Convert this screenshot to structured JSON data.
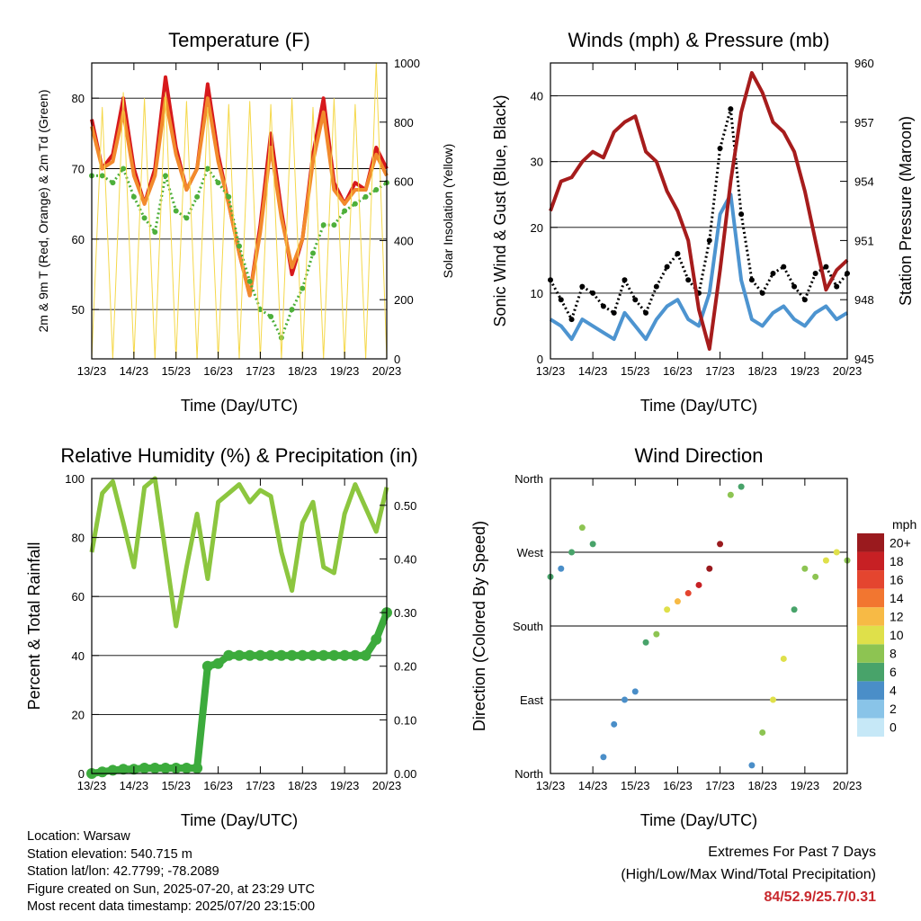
{
  "chart_data": [
    {
      "type": "line",
      "title": "Temperature (F)",
      "xlabel": "Time (Day/UTC)",
      "ylabel": "2m & 9m T (Red, Orange) & 2m Td (Green)",
      "ylabel_right": "Solar Insolation (Yellow)",
      "ylim": [
        43,
        85
      ],
      "ylim_right": [
        0,
        1000
      ],
      "x_ticks": [
        "13/23",
        "14/23",
        "15/23",
        "16/23",
        "17/23",
        "18/23",
        "19/23",
        "20/23"
      ],
      "y_ticks": [
        50,
        60,
        70,
        80
      ],
      "y_ticks_right": [
        0,
        200,
        400,
        600,
        800,
        1000
      ],
      "grid": true,
      "x": [
        0,
        0.25,
        0.5,
        0.75,
        1,
        1.25,
        1.5,
        1.75,
        2,
        2.25,
        2.5,
        2.75,
        3,
        3.25,
        3.5,
        3.75,
        4,
        4.25,
        4.5,
        4.75,
        5,
        5.25,
        5.5,
        5.75,
        6,
        6.25,
        6.5,
        6.75,
        7
      ],
      "series": [
        {
          "name": "2m T",
          "color": "#d7191c",
          "values": [
            77,
            70,
            72,
            80,
            70,
            65,
            70,
            83,
            73,
            67,
            70,
            82,
            72,
            65,
            58,
            52,
            62,
            75,
            64,
            55,
            60,
            72,
            80,
            68,
            65,
            68,
            67,
            73,
            70
          ]
        },
        {
          "name": "9m T",
          "color": "#f28a2c",
          "values": [
            76,
            70,
            71,
            78,
            69,
            65,
            69,
            80,
            72,
            67,
            70,
            80,
            71,
            65,
            58,
            52,
            61,
            73,
            63,
            56,
            60,
            71,
            78,
            67,
            65,
            67,
            67,
            72,
            69
          ]
        },
        {
          "name": "2m Td",
          "color": "#4daf3a",
          "values": [
            69,
            69,
            68,
            70,
            66,
            63,
            61,
            69,
            64,
            63,
            66,
            70,
            68,
            66,
            59,
            54,
            50,
            49,
            46,
            50,
            53,
            58,
            62,
            62,
            64,
            65,
            66,
            67,
            68
          ]
        },
        {
          "name": "Solar Insolation",
          "axis": "right",
          "color": "#f5d84a",
          "values": [
            0,
            850,
            0,
            900,
            0,
            880,
            0,
            900,
            0,
            870,
            0,
            850,
            0,
            860,
            0,
            870,
            0,
            860,
            0,
            880,
            0,
            850,
            0,
            880,
            0,
            860,
            0,
            1000,
            0
          ]
        }
      ]
    },
    {
      "type": "line",
      "title": "Winds (mph) & Pressure (mb)",
      "xlabel": "Time (Day/UTC)",
      "ylabel": "Sonic Wind & Gust (Blue, Black)",
      "ylabel_right": "Station Pressure (Maroon)",
      "ylim": [
        0,
        45
      ],
      "ylim_right": [
        945,
        960
      ],
      "x_ticks": [
        "13/23",
        "14/23",
        "15/23",
        "16/23",
        "17/23",
        "18/23",
        "19/23",
        "20/23"
      ],
      "y_ticks": [
        0,
        10,
        20,
        30,
        40
      ],
      "y_ticks_right": [
        945,
        948,
        951,
        954,
        957,
        960
      ],
      "grid": true,
      "x": [
        0,
        0.25,
        0.5,
        0.75,
        1,
        1.25,
        1.5,
        1.75,
        2,
        2.25,
        2.5,
        2.75,
        3,
        3.25,
        3.5,
        3.75,
        4,
        4.25,
        4.5,
        4.75,
        5,
        5.25,
        5.5,
        5.75,
        6,
        6.25,
        6.5,
        6.75,
        7
      ],
      "series": [
        {
          "name": "Sonic Wind",
          "color": "#4d94d0",
          "values": [
            6,
            5,
            3,
            6,
            5,
            4,
            3,
            7,
            5,
            3,
            6,
            8,
            9,
            6,
            5,
            10,
            22,
            25,
            12,
            6,
            5,
            7,
            8,
            6,
            5,
            7,
            8,
            6,
            7
          ]
        },
        {
          "name": "Gust",
          "color": "#000000",
          "values": [
            12,
            9,
            6,
            11,
            10,
            8,
            7,
            12,
            9,
            7,
            11,
            14,
            16,
            12,
            10,
            18,
            32,
            38,
            22,
            12,
            10,
            13,
            14,
            11,
            9,
            13,
            14,
            11,
            13
          ]
        },
        {
          "name": "Station Pressure",
          "axis": "right",
          "color": "#a61c1c",
          "values": [
            952.5,
            954,
            954.2,
            955,
            955.5,
            955.2,
            956.5,
            957,
            957.3,
            955.5,
            955,
            953.5,
            952.5,
            951,
            947.5,
            945.5,
            949.5,
            954,
            957.5,
            959.5,
            958.5,
            957,
            956.5,
            955.5,
            953.5,
            951,
            948.5,
            949.5,
            950
          ]
        }
      ]
    },
    {
      "type": "line",
      "title": "Relative Humidity (%) & Precipitation (in)",
      "xlabel": "Time (Day/UTC)",
      "ylabel": "Percent & Total Rainfall",
      "ylim": [
        0,
        100
      ],
      "ylim_right": [
        0,
        0.55
      ],
      "x_ticks": [
        "13/23",
        "14/23",
        "15/23",
        "16/23",
        "17/23",
        "18/23",
        "19/23",
        "20/23"
      ],
      "y_ticks": [
        0,
        20,
        40,
        60,
        80,
        100
      ],
      "y_ticks_right": [
        "0.00",
        "0.10",
        "0.20",
        "0.30",
        "0.40",
        "0.50"
      ],
      "grid": true,
      "x": [
        0,
        0.25,
        0.5,
        0.75,
        1,
        1.25,
        1.5,
        1.75,
        2,
        2.25,
        2.5,
        2.75,
        3,
        3.25,
        3.5,
        3.75,
        4,
        4.25,
        4.5,
        4.75,
        5,
        5.25,
        5.5,
        5.75,
        6,
        6.25,
        6.5,
        6.75,
        7
      ],
      "series": [
        {
          "name": "Relative Humidity",
          "color": "#8cc63f",
          "values": [
            75,
            95,
            99,
            85,
            70,
            97,
            100,
            75,
            50,
            70,
            88,
            66,
            92,
            95,
            98,
            92,
            96,
            94,
            75,
            62,
            85,
            92,
            70,
            68,
            88,
            98,
            90,
            82,
            97
          ]
        },
        {
          "name": "Total Precipitation",
          "axis": "right",
          "color": "#3cab3c",
          "values": [
            0,
            0.003,
            0.006,
            0.008,
            0.008,
            0.01,
            0.01,
            0.01,
            0.01,
            0.01,
            0.01,
            0.2,
            0.205,
            0.22,
            0.22,
            0.22,
            0.22,
            0.22,
            0.22,
            0.22,
            0.22,
            0.22,
            0.22,
            0.22,
            0.22,
            0.22,
            0.22,
            0.25,
            0.3
          ]
        }
      ]
    },
    {
      "type": "scatter",
      "title": "Wind Direction",
      "xlabel": "Time (Day/UTC)",
      "ylabel": "Direction (Colored By Speed)",
      "ylim": [
        0,
        360
      ],
      "x_ticks": [
        "13/23",
        "14/23",
        "15/23",
        "16/23",
        "17/23",
        "18/23",
        "19/23",
        "20/23"
      ],
      "y_ticks": [
        "North",
        "East",
        "South",
        "West",
        "North"
      ],
      "grid": true,
      "colorbar": {
        "title": "mph",
        "labels": [
          "0",
          "2",
          "4",
          "6",
          "8",
          "10",
          "12",
          "14",
          "16",
          "18",
          "20+"
        ],
        "colors": [
          "#c6e8f7",
          "#89c4e8",
          "#4a8ec8",
          "#48a36a",
          "#8dc452",
          "#dfe04a",
          "#f7ba45",
          "#f27630",
          "#e4452f",
          "#c72024",
          "#9a1a1e"
        ]
      },
      "x": [
        0,
        0.25,
        0.5,
        0.75,
        1,
        1.25,
        1.5,
        1.75,
        2,
        2.25,
        2.5,
        2.75,
        3,
        3.25,
        3.5,
        3.75,
        4,
        4.25,
        4.5,
        4.75,
        5,
        5.25,
        5.5,
        5.75,
        6,
        6.25,
        6.5,
        6.75,
        7
      ],
      "direction": [
        240,
        250,
        270,
        300,
        280,
        20,
        60,
        90,
        100,
        160,
        170,
        200,
        210,
        220,
        230,
        250,
        280,
        340,
        350,
        10,
        50,
        90,
        140,
        200,
        250,
        240,
        260,
        270,
        260
      ],
      "speed": [
        5,
        4,
        5,
        8,
        6,
        3,
        4,
        4,
        4,
        5,
        8,
        10,
        12,
        16,
        18,
        20,
        20,
        8,
        6,
        4,
        7,
        9,
        10,
        5,
        7,
        8,
        9,
        10,
        8
      ]
    }
  ],
  "station": {
    "location": "Location: Warsaw",
    "elevation": "Station elevation: 540.715 m",
    "latlon": "Station lat/lon: 42.7799; -78.2089",
    "created": "Figure created on Sun, 2025-07-20, at 23:29 UTC",
    "recent": "Most recent data timestamp: 2025/07/20 23:15:00"
  },
  "extremes": {
    "title": "Extremes For Past 7 Days",
    "subtitle": "(High/Low/Max Wind/Total Precipitation)",
    "values": "84/52.9/25.7/0.31"
  }
}
